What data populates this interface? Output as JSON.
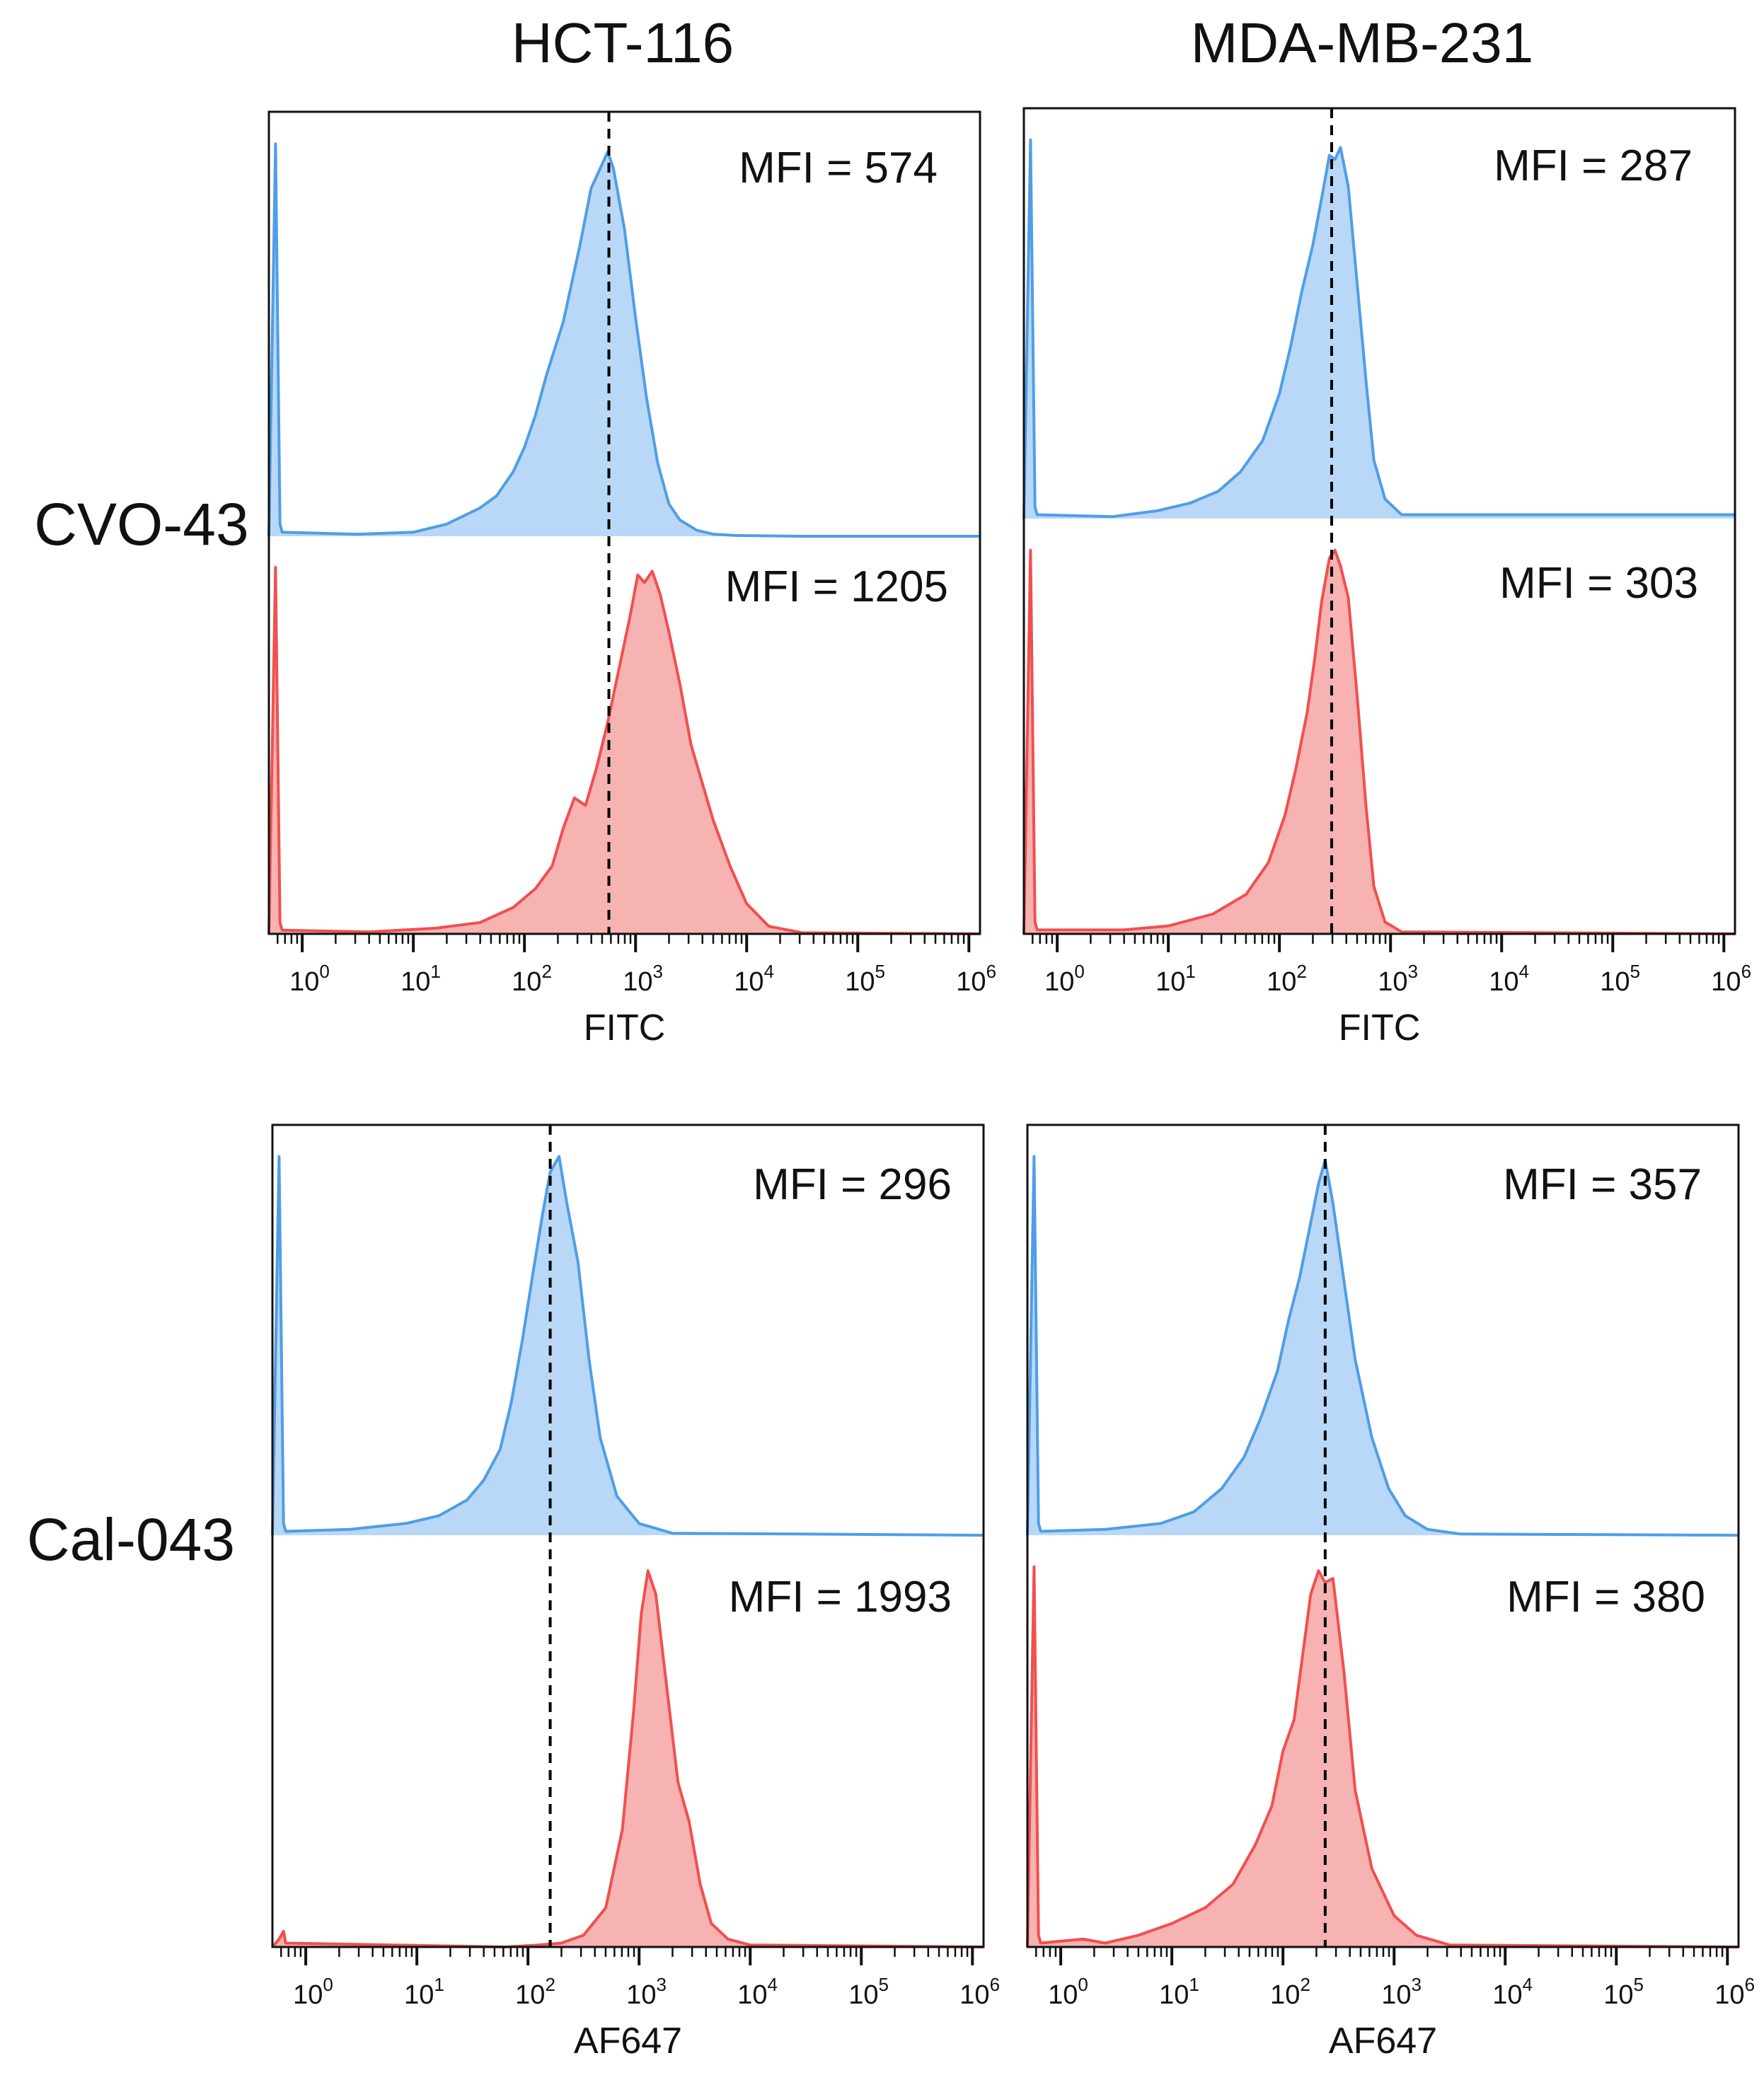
{
  "column_titles": [
    "HCT-116",
    "MDA-MB-231"
  ],
  "row_titles": [
    "CVO-43",
    "Cal-043"
  ],
  "colors": {
    "control_line": "#4f9ee6",
    "control_fill": "#b9d8f7",
    "treated_line": "#f0504f",
    "treated_fill": "#f7b2b2",
    "axis": "#111111"
  },
  "chart_data": [
    {
      "type": "area",
      "id": "cvo43-hct116",
      "row": "CVO-43",
      "column": "HCT-116",
      "xlabel": "FITC",
      "xscale": "log",
      "xlim_exp": [
        -0.3,
        6.1
      ],
      "tick_labels": [
        {
          "base": "10",
          "exp": "0"
        },
        {
          "base": "10",
          "exp": "1"
        },
        {
          "base": "10",
          "exp": "2"
        },
        {
          "base": "10",
          "exp": "3"
        },
        {
          "base": "10",
          "exp": "4"
        },
        {
          "base": "10",
          "exp": "5"
        },
        {
          "base": "10",
          "exp": "6"
        }
      ],
      "reference_line_log10": 2.76,
      "series": [
        {
          "name": "control",
          "mfi_label": "MFI = 574",
          "mfi": 574,
          "x_log10": [
            -0.3,
            -0.24,
            -0.2,
            -0.18,
            0.5,
            1.0,
            1.3,
            1.6,
            1.75,
            1.9,
            2.0,
            2.1,
            2.2,
            2.35,
            2.5,
            2.6,
            2.7,
            2.75,
            2.8,
            2.9,
            3.0,
            3.1,
            3.2,
            3.3,
            3.4,
            3.55,
            3.7,
            3.9,
            4.5,
            6.1
          ],
          "y": [
            0,
            0.97,
            0.03,
            0.01,
            0.005,
            0.01,
            0.03,
            0.07,
            0.1,
            0.16,
            0.22,
            0.3,
            0.4,
            0.53,
            0.72,
            0.86,
            0.92,
            0.95,
            0.91,
            0.76,
            0.54,
            0.34,
            0.18,
            0.08,
            0.04,
            0.015,
            0.005,
            0.002,
            0,
            0
          ]
        },
        {
          "name": "treated",
          "mfi_label": "MFI = 1205",
          "mfi": 1205,
          "x_log10": [
            -0.3,
            -0.24,
            -0.2,
            -0.18,
            0.6,
            1.2,
            1.6,
            1.9,
            2.1,
            2.25,
            2.35,
            2.45,
            2.55,
            2.65,
            2.75,
            2.85,
            2.95,
            3.02,
            3.08,
            3.15,
            3.22,
            3.3,
            3.4,
            3.5,
            3.6,
            3.7,
            3.85,
            4.0,
            4.2,
            4.5,
            6.1
          ],
          "y": [
            0,
            0.97,
            0.03,
            0.01,
            0.005,
            0.015,
            0.03,
            0.07,
            0.12,
            0.18,
            0.28,
            0.36,
            0.34,
            0.44,
            0.56,
            0.7,
            0.84,
            0.95,
            0.93,
            0.96,
            0.9,
            0.8,
            0.66,
            0.5,
            0.4,
            0.3,
            0.18,
            0.08,
            0.02,
            0.003,
            0
          ]
        }
      ]
    },
    {
      "type": "area",
      "id": "cvo43-mda",
      "row": "CVO-43",
      "column": "MDA-MB-231",
      "xlabel": "FITC",
      "xscale": "log",
      "xlim_exp": [
        -0.3,
        6.1
      ],
      "tick_labels": [
        {
          "base": "10",
          "exp": "0"
        },
        {
          "base": "10",
          "exp": "1"
        },
        {
          "base": "10",
          "exp": "2"
        },
        {
          "base": "10",
          "exp": "3"
        },
        {
          "base": "10",
          "exp": "4"
        },
        {
          "base": "10",
          "exp": "5"
        },
        {
          "base": "10",
          "exp": "6"
        }
      ],
      "reference_line_log10": 2.47,
      "series": [
        {
          "name": "control",
          "mfi_label": "MFI = 287",
          "mfi": 287,
          "x_log10": [
            -0.3,
            -0.24,
            -0.2,
            -0.18,
            0.5,
            0.9,
            1.2,
            1.45,
            1.65,
            1.85,
            2.0,
            2.1,
            2.2,
            2.3,
            2.38,
            2.45,
            2.5,
            2.55,
            2.62,
            2.7,
            2.78,
            2.85,
            2.95,
            3.1,
            6.1
          ],
          "y": [
            0,
            0.97,
            0.03,
            0.01,
            0.005,
            0.02,
            0.04,
            0.07,
            0.12,
            0.2,
            0.32,
            0.44,
            0.58,
            0.7,
            0.82,
            0.93,
            0.92,
            0.95,
            0.85,
            0.6,
            0.35,
            0.15,
            0.05,
            0.01,
            0.01
          ]
        },
        {
          "name": "treated",
          "mfi_label": "MFI = 303",
          "mfi": 303,
          "x_log10": [
            -0.3,
            -0.24,
            -0.2,
            -0.18,
            0.6,
            1.0,
            1.4,
            1.7,
            1.9,
            2.05,
            2.15,
            2.25,
            2.32,
            2.38,
            2.45,
            2.5,
            2.55,
            2.62,
            2.7,
            2.78,
            2.85,
            2.95,
            3.1,
            6.1
          ],
          "y": [
            0,
            0.97,
            0.03,
            0.01,
            0.01,
            0.02,
            0.05,
            0.1,
            0.18,
            0.3,
            0.42,
            0.56,
            0.7,
            0.84,
            0.95,
            0.97,
            0.93,
            0.85,
            0.6,
            0.32,
            0.12,
            0.03,
            0.005,
            0
          ]
        }
      ]
    },
    {
      "type": "area",
      "id": "cal043-hct116",
      "row": "Cal-043",
      "column": "HCT-116",
      "xlabel": "AF647",
      "xscale": "log",
      "xlim_exp": [
        -0.3,
        6.1
      ],
      "tick_labels": [
        {
          "base": "10",
          "exp": "0"
        },
        {
          "base": "10",
          "exp": "1"
        },
        {
          "base": "10",
          "exp": "2"
        },
        {
          "base": "10",
          "exp": "3"
        },
        {
          "base": "10",
          "exp": "4"
        },
        {
          "base": "10",
          "exp": "5"
        },
        {
          "base": "10",
          "exp": "6"
        }
      ],
      "reference_line_log10": 2.2,
      "series": [
        {
          "name": "control",
          "mfi_label": "MFI = 296",
          "mfi": 296,
          "x_log10": [
            -0.3,
            -0.24,
            -0.2,
            -0.18,
            0.4,
            0.9,
            1.2,
            1.45,
            1.6,
            1.75,
            1.85,
            1.95,
            2.05,
            2.13,
            2.2,
            2.28,
            2.35,
            2.45,
            2.55,
            2.65,
            2.8,
            3.0,
            3.3,
            6.1
          ],
          "y": [
            0,
            0.97,
            0.03,
            0.01,
            0.015,
            0.03,
            0.05,
            0.09,
            0.14,
            0.22,
            0.34,
            0.5,
            0.68,
            0.82,
            0.93,
            0.97,
            0.85,
            0.7,
            0.45,
            0.25,
            0.1,
            0.03,
            0.005,
            0
          ]
        },
        {
          "name": "treated",
          "mfi_label": "MFI = 1993",
          "mfi": 1993,
          "x_log10": [
            -0.3,
            -0.24,
            -0.2,
            -0.18,
            1.8,
            2.1,
            2.3,
            2.5,
            2.7,
            2.85,
            2.95,
            3.02,
            3.08,
            3.15,
            3.25,
            3.35,
            3.45,
            3.55,
            3.65,
            3.8,
            4.0,
            6.1
          ],
          "y": [
            0,
            0.02,
            0.04,
            0.01,
            0,
            0.005,
            0.01,
            0.03,
            0.1,
            0.3,
            0.6,
            0.85,
            0.96,
            0.9,
            0.66,
            0.42,
            0.32,
            0.16,
            0.06,
            0.02,
            0.005,
            0
          ]
        }
      ]
    },
    {
      "type": "area",
      "id": "cal043-mda",
      "row": "Cal-043",
      "column": "MDA-MB-231",
      "xlabel": "AF647",
      "xscale": "log",
      "xlim_exp": [
        -0.3,
        6.1
      ],
      "tick_labels": [
        {
          "base": "10",
          "exp": "0"
        },
        {
          "base": "10",
          "exp": "1"
        },
        {
          "base": "10",
          "exp": "2"
        },
        {
          "base": "10",
          "exp": "3"
        },
        {
          "base": "10",
          "exp": "4"
        },
        {
          "base": "10",
          "exp": "5"
        },
        {
          "base": "10",
          "exp": "6"
        }
      ],
      "reference_line_log10": 2.38,
      "series": [
        {
          "name": "control",
          "mfi_label": "MFI = 357",
          "mfi": 357,
          "x_log10": [
            -0.3,
            -0.24,
            -0.2,
            -0.18,
            0.4,
            0.9,
            1.2,
            1.45,
            1.65,
            1.8,
            1.95,
            2.05,
            2.15,
            2.25,
            2.32,
            2.38,
            2.45,
            2.55,
            2.65,
            2.8,
            2.95,
            3.1,
            3.3,
            3.6,
            6.1
          ],
          "y": [
            0,
            0.97,
            0.03,
            0.01,
            0.015,
            0.03,
            0.06,
            0.12,
            0.2,
            0.3,
            0.42,
            0.55,
            0.66,
            0.8,
            0.9,
            0.96,
            0.85,
            0.65,
            0.45,
            0.25,
            0.12,
            0.05,
            0.015,
            0.003,
            0
          ]
        },
        {
          "name": "treated",
          "mfi_label": "MFI = 380",
          "mfi": 380,
          "x_log10": [
            -0.3,
            -0.24,
            -0.2,
            -0.18,
            0.2,
            0.4,
            0.7,
            1.0,
            1.3,
            1.55,
            1.75,
            1.9,
            2.0,
            2.1,
            2.18,
            2.25,
            2.32,
            2.38,
            2.45,
            2.55,
            2.65,
            2.8,
            3.0,
            3.2,
            3.5,
            6.1
          ],
          "y": [
            0,
            0.97,
            0.03,
            0.01,
            0.02,
            0.01,
            0.03,
            0.06,
            0.1,
            0.16,
            0.26,
            0.36,
            0.5,
            0.58,
            0.75,
            0.9,
            0.96,
            0.93,
            0.94,
            0.7,
            0.4,
            0.2,
            0.08,
            0.03,
            0.005,
            0
          ]
        }
      ]
    }
  ]
}
